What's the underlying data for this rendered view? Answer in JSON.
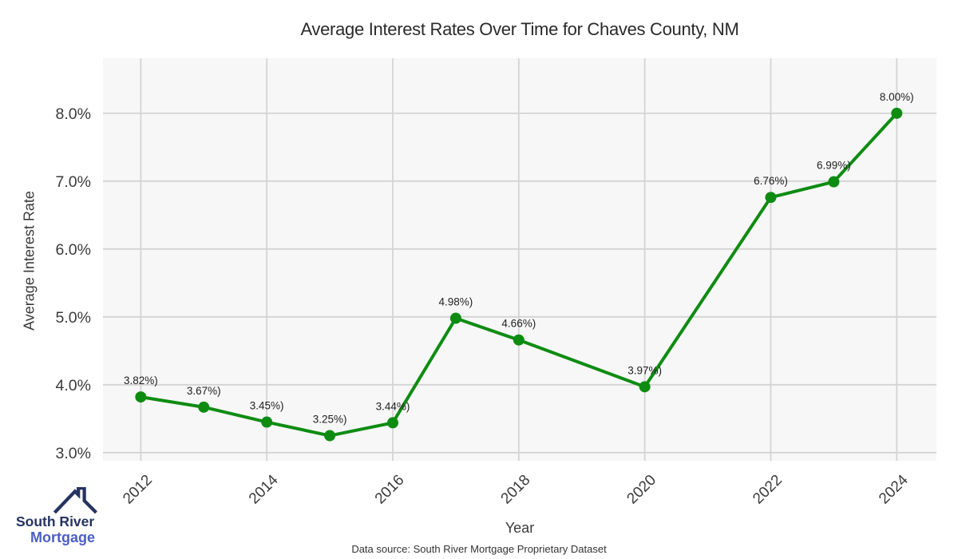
{
  "title": "Average Interest Rates Over Time for Chaves County, NM",
  "chart_data": {
    "type": "line",
    "title": "Average Interest Rates Over Time for Chaves County, NM",
    "xlabel": "Year",
    "ylabel": "Average Interest Rate",
    "x": [
      2012,
      2013,
      2014,
      2015,
      2016,
      2017,
      2018,
      2020,
      2022,
      2023,
      2024
    ],
    "values": [
      3.82,
      3.67,
      3.45,
      3.25,
      3.44,
      4.98,
      4.66,
      3.97,
      6.76,
      6.99,
      8.0
    ],
    "point_labels": [
      "3.82%)",
      "3.67%)",
      "3.45%)",
      "3.25%)",
      "3.44%)",
      "4.98%)",
      "4.66%)",
      "3.97%)",
      "6.76%)",
      "6.99%)",
      "8.00%)"
    ],
    "x_ticks": [
      2012,
      2014,
      2016,
      2018,
      2020,
      2022,
      2024
    ],
    "y_tick_values": [
      3,
      4,
      5,
      6,
      7,
      8
    ],
    "y_tick_labels": [
      "3.0%",
      "4.0%",
      "5.0%",
      "6.0%",
      "7.0%",
      "8.0%"
    ],
    "xlim": [
      2011.4,
      2024.63
    ],
    "ylim": [
      2.88,
      8.81
    ],
    "grid": true,
    "legend": "none",
    "series_color": "#0e8c12",
    "plot_background": "#f7f7f7",
    "grid_color": "#d4d4d4",
    "tick_label_color": "#3b3b3b",
    "point_label_color": "#1f1f1f",
    "marker_radius": 7,
    "line_width": 4
  },
  "footer": {
    "source_note": "Data source: South River Mortgage Proprietary Dataset"
  },
  "logo": {
    "line1": "South River",
    "line2": "Mortgage",
    "primary_color": "#253361",
    "secondary_color": "#4d5ec4"
  }
}
